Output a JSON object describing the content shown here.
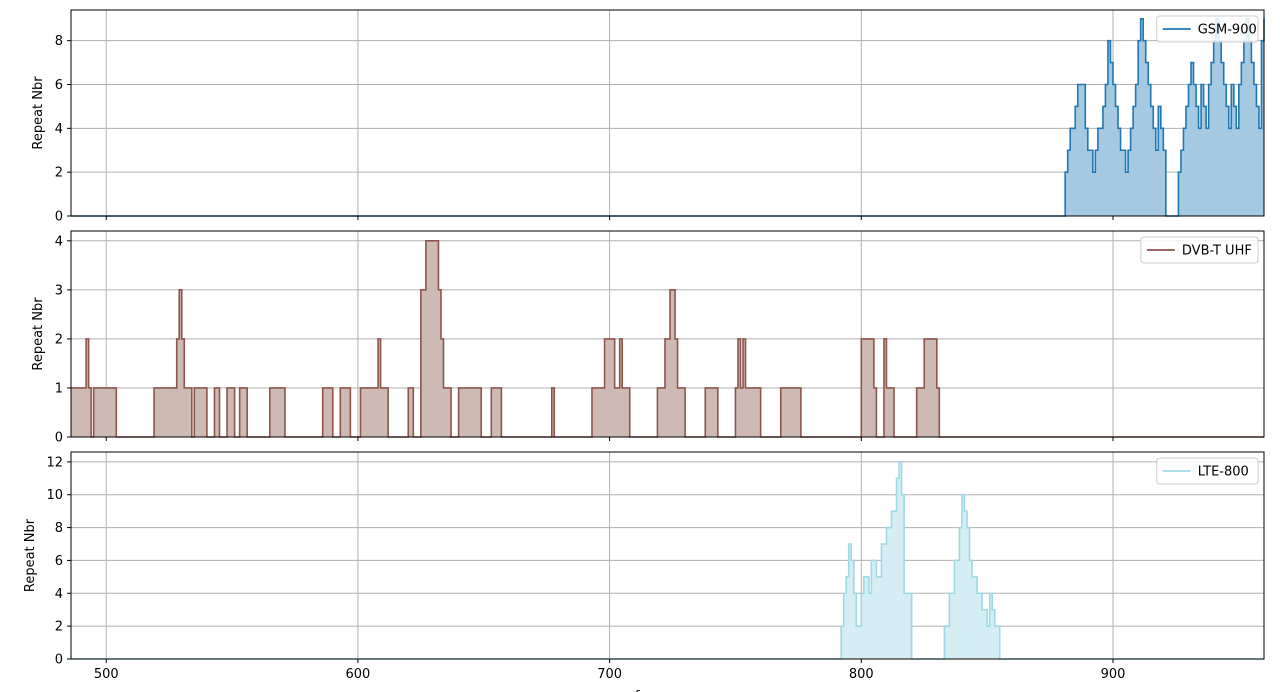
{
  "chart_data": [
    {
      "type": "area",
      "series": [
        {
          "name": "GSM-900",
          "color": "#1f77b4",
          "fill": "#a6c9e2"
        }
      ],
      "ylabel": "Repeat Nbr",
      "xlim": [
        486,
        960
      ],
      "ylim": [
        0,
        9.4
      ],
      "xticks": [
        500,
        600,
        700,
        800,
        900
      ],
      "yticks": [
        0,
        2,
        4,
        6,
        8
      ],
      "legend": "top-right",
      "grid": true,
      "points": [
        [
          486,
          0
        ],
        [
          880,
          0
        ],
        [
          881,
          2
        ],
        [
          882,
          3
        ],
        [
          883,
          4
        ],
        [
          885,
          5
        ],
        [
          886,
          6
        ],
        [
          888,
          6
        ],
        [
          889,
          4
        ],
        [
          890,
          3
        ],
        [
          892,
          2
        ],
        [
          893,
          3
        ],
        [
          894,
          4
        ],
        [
          896,
          5
        ],
        [
          897,
          6
        ],
        [
          898,
          8
        ],
        [
          899,
          7
        ],
        [
          900,
          6
        ],
        [
          901,
          5
        ],
        [
          902,
          4
        ],
        [
          903,
          3
        ],
        [
          905,
          2
        ],
        [
          906,
          3
        ],
        [
          907,
          4
        ],
        [
          908,
          5
        ],
        [
          909,
          6
        ],
        [
          910,
          8
        ],
        [
          911,
          9
        ],
        [
          912,
          8
        ],
        [
          913,
          7
        ],
        [
          914,
          6
        ],
        [
          915,
          5
        ],
        [
          916,
          4
        ],
        [
          917,
          3
        ],
        [
          918,
          5
        ],
        [
          919,
          4
        ],
        [
          920,
          3
        ],
        [
          921,
          0
        ],
        [
          925,
          0
        ],
        [
          926,
          2
        ],
        [
          927,
          3
        ],
        [
          928,
          4
        ],
        [
          929,
          5
        ],
        [
          930,
          6
        ],
        [
          931,
          7
        ],
        [
          932,
          6
        ],
        [
          933,
          5
        ],
        [
          934,
          4
        ],
        [
          935,
          6
        ],
        [
          936,
          5
        ],
        [
          937,
          4
        ],
        [
          938,
          6
        ],
        [
          939,
          7
        ],
        [
          940,
          8
        ],
        [
          941,
          9
        ],
        [
          942,
          8
        ],
        [
          943,
          7
        ],
        [
          944,
          6
        ],
        [
          945,
          5
        ],
        [
          946,
          4
        ],
        [
          947,
          6
        ],
        [
          948,
          5
        ],
        [
          949,
          4
        ],
        [
          950,
          6
        ],
        [
          951,
          7
        ],
        [
          952,
          8
        ],
        [
          953,
          9
        ],
        [
          954,
          8
        ],
        [
          955,
          7
        ],
        [
          956,
          6
        ],
        [
          957,
          5
        ],
        [
          958,
          4
        ],
        [
          959,
          8
        ],
        [
          960,
          9
        ]
      ]
    },
    {
      "type": "area",
      "series": [
        {
          "name": "DVB-T UHF",
          "color": "#8c564b",
          "fill": "#cfb9b4"
        }
      ],
      "ylabel": "Repeat Nbr",
      "xlim": [
        486,
        960
      ],
      "ylim": [
        0,
        4.2
      ],
      "xticks": [
        500,
        600,
        700,
        800,
        900
      ],
      "yticks": [
        0,
        1,
        2,
        3,
        4
      ],
      "legend": "top-right",
      "grid": true,
      "points": [
        [
          486,
          1
        ],
        [
          492,
          2
        ],
        [
          493,
          1
        ],
        [
          494,
          0
        ],
        [
          495,
          1
        ],
        [
          504,
          0
        ],
        [
          519,
          1
        ],
        [
          528,
          2
        ],
        [
          529,
          3
        ],
        [
          530,
          2
        ],
        [
          531,
          1
        ],
        [
          534,
          0
        ],
        [
          535,
          1
        ],
        [
          540,
          0
        ],
        [
          543,
          1
        ],
        [
          545,
          0
        ],
        [
          548,
          1
        ],
        [
          551,
          0
        ],
        [
          553,
          1
        ],
        [
          556,
          0
        ],
        [
          565,
          1
        ],
        [
          571,
          0
        ],
        [
          586,
          1
        ],
        [
          590,
          0
        ],
        [
          593,
          1
        ],
        [
          597,
          0
        ],
        [
          601,
          1
        ],
        [
          608,
          2
        ],
        [
          609,
          1
        ],
        [
          612,
          0
        ],
        [
          620,
          1
        ],
        [
          622,
          0
        ],
        [
          625,
          3
        ],
        [
          627,
          4
        ],
        [
          632,
          3
        ],
        [
          633,
          2
        ],
        [
          634,
          1
        ],
        [
          637,
          0
        ],
        [
          640,
          1
        ],
        [
          649,
          0
        ],
        [
          653,
          1
        ],
        [
          657,
          0
        ],
        [
          677,
          1
        ],
        [
          678,
          0
        ],
        [
          693,
          1
        ],
        [
          698,
          2
        ],
        [
          702,
          1
        ],
        [
          704,
          2
        ],
        [
          705,
          1
        ],
        [
          708,
          0
        ],
        [
          719,
          1
        ],
        [
          722,
          2
        ],
        [
          724,
          3
        ],
        [
          726,
          2
        ],
        [
          727,
          1
        ],
        [
          730,
          0
        ],
        [
          738,
          1
        ],
        [
          743,
          0
        ],
        [
          750,
          1
        ],
        [
          751,
          2
        ],
        [
          752,
          1
        ],
        [
          753,
          2
        ],
        [
          754,
          1
        ],
        [
          760,
          0
        ],
        [
          768,
          1
        ],
        [
          776,
          0
        ],
        [
          800,
          2
        ],
        [
          805,
          1
        ],
        [
          806,
          0
        ],
        [
          809,
          2
        ],
        [
          810,
          1
        ],
        [
          813,
          0
        ],
        [
          822,
          1
        ],
        [
          825,
          2
        ],
        [
          830,
          1
        ],
        [
          831,
          0
        ],
        [
          960,
          0
        ]
      ]
    },
    {
      "type": "area",
      "series": [
        {
          "name": "LTE-800",
          "color": "#9ed9e5",
          "fill": "#d5eef3"
        }
      ],
      "ylabel": "Repeat Nbr",
      "xlabel": "frequency",
      "xlim": [
        486,
        960
      ],
      "ylim": [
        0,
        12.6
      ],
      "xticks": [
        500,
        600,
        700,
        800,
        900
      ],
      "yticks": [
        0,
        2,
        4,
        6,
        8,
        10,
        12
      ],
      "legend": "top-right",
      "grid": true,
      "points": [
        [
          486,
          0
        ],
        [
          791,
          0
        ],
        [
          792,
          2
        ],
        [
          793,
          4
        ],
        [
          794,
          5
        ],
        [
          795,
          7
        ],
        [
          796,
          6
        ],
        [
          797,
          4
        ],
        [
          798,
          2
        ],
        [
          800,
          4
        ],
        [
          801,
          5
        ],
        [
          803,
          4
        ],
        [
          804,
          6
        ],
        [
          806,
          5
        ],
        [
          808,
          7
        ],
        [
          810,
          8
        ],
        [
          812,
          9
        ],
        [
          814,
          11
        ],
        [
          815,
          12
        ],
        [
          816,
          10
        ],
        [
          817,
          4
        ],
        [
          820,
          0
        ],
        [
          832,
          0
        ],
        [
          833,
          2
        ],
        [
          835,
          4
        ],
        [
          837,
          6
        ],
        [
          839,
          8
        ],
        [
          840,
          10
        ],
        [
          841,
          9
        ],
        [
          842,
          8
        ],
        [
          843,
          6
        ],
        [
          844,
          5
        ],
        [
          846,
          4
        ],
        [
          848,
          3
        ],
        [
          850,
          2
        ],
        [
          851,
          4
        ],
        [
          852,
          3
        ],
        [
          853,
          2
        ],
        [
          855,
          0
        ],
        [
          960,
          0
        ]
      ]
    }
  ]
}
